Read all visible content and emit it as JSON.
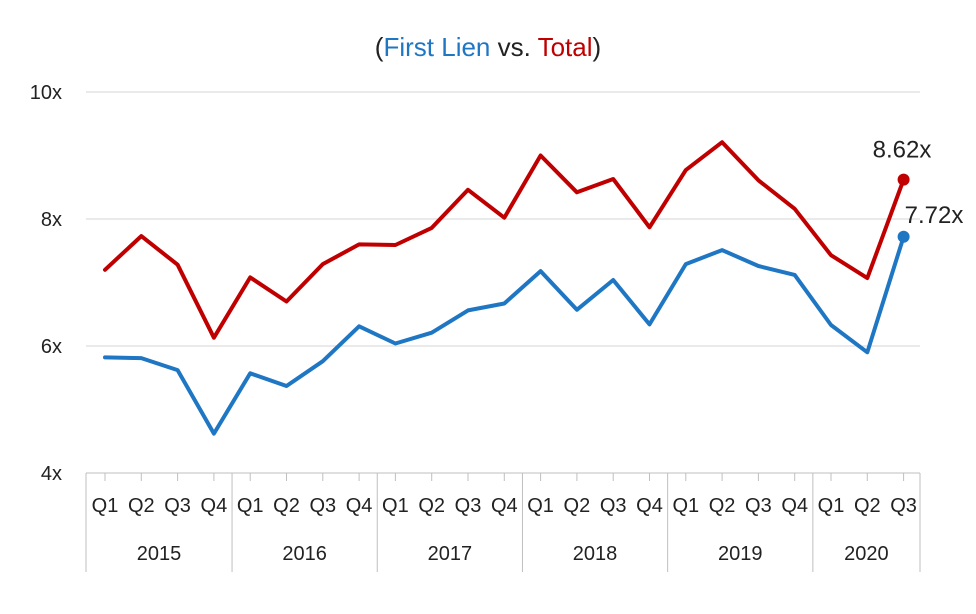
{
  "chart_data": {
    "type": "line",
    "title": {
      "open": "(",
      "part1": "First Lien",
      "mid": " vs. ",
      "part2": "Total",
      "close": ")"
    },
    "xlabel": "",
    "ylabel": "",
    "ylim": [
      4,
      10
    ],
    "yticks": [
      4,
      6,
      8,
      10
    ],
    "ytick_labels": [
      "4x",
      "6x",
      "8x",
      "10x"
    ],
    "grid": true,
    "categories": [
      "Q1",
      "Q2",
      "Q3",
      "Q4",
      "Q1",
      "Q2",
      "Q3",
      "Q4",
      "Q1",
      "Q2",
      "Q3",
      "Q4",
      "Q1",
      "Q2",
      "Q3",
      "Q4",
      "Q1",
      "Q2",
      "Q3",
      "Q4",
      "Q1",
      "Q2",
      "Q3"
    ],
    "years": [
      {
        "label": "2015",
        "span": 4
      },
      {
        "label": "2016",
        "span": 4
      },
      {
        "label": "2017",
        "span": 4
      },
      {
        "label": "2018",
        "span": 4
      },
      {
        "label": "2019",
        "span": 4
      },
      {
        "label": "2020",
        "span": 3
      }
    ],
    "series": [
      {
        "name": "Total",
        "color": "#c00000",
        "values": [
          7.2,
          7.73,
          7.28,
          6.13,
          7.08,
          6.7,
          7.29,
          7.6,
          7.59,
          7.86,
          8.46,
          8.02,
          9.0,
          8.42,
          8.63,
          7.87,
          8.77,
          9.21,
          8.61,
          8.16,
          7.43,
          7.07,
          8.62
        ],
        "end_label": "8.62x"
      },
      {
        "name": "First Lien",
        "color": "#1f77c4",
        "values": [
          5.82,
          5.81,
          5.62,
          4.62,
          5.57,
          5.37,
          5.76,
          6.31,
          6.04,
          6.21,
          6.56,
          6.67,
          7.18,
          6.57,
          7.04,
          6.34,
          7.29,
          7.51,
          7.26,
          7.12,
          6.33,
          5.9,
          7.72
        ],
        "end_label": "7.72x"
      }
    ]
  }
}
